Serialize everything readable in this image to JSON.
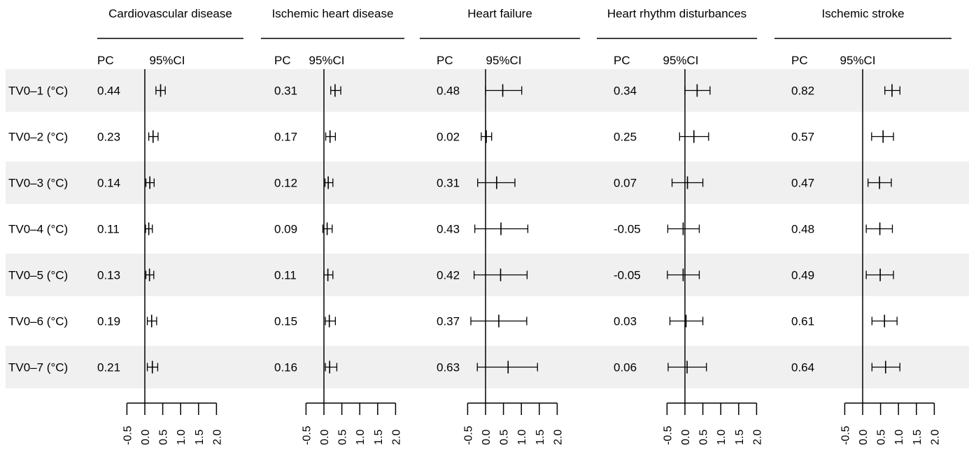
{
  "column_headers": {
    "pc": "PC",
    "ci": "95%CI"
  },
  "row_labels": [
    "TV0–1 (°C)",
    "TV0–2 (°C)",
    "TV0–3 (°C)",
    "TV0–4 (°C)",
    "TV0–5 (°C)",
    "TV0–6 (°C)",
    "TV0–7 (°C)"
  ],
  "colors": {
    "row_band": "#f0f0f0",
    "ink": "#000000"
  },
  "chart_data": [
    {
      "type": "forest",
      "title": "Cardiovascular disease",
      "pc_labels": [
        "0.44",
        "0.23",
        "0.14",
        "0.11",
        "0.13",
        "0.19",
        "0.21"
      ],
      "values": [
        0.44,
        0.23,
        0.14,
        0.11,
        0.13,
        0.19,
        0.21
      ],
      "ci_lower": [
        0.31,
        0.11,
        0.03,
        0.02,
        0.03,
        0.07,
        0.07
      ],
      "ci_upper": [
        0.57,
        0.37,
        0.26,
        0.21,
        0.25,
        0.33,
        0.36
      ],
      "xlim": [
        -0.5,
        2.0
      ],
      "xticks": [
        "-0.5",
        "0.0",
        "0.5",
        "1.0",
        "1.5",
        "2.0"
      ]
    },
    {
      "type": "forest",
      "title": "Ischemic heart disease",
      "pc_labels": [
        "0.31",
        "0.17",
        "0.12",
        "0.09",
        "0.11",
        "0.15",
        "0.16"
      ],
      "values": [
        0.31,
        0.17,
        0.12,
        0.09,
        0.11,
        0.15,
        0.16
      ],
      "ci_lower": [
        0.19,
        0.05,
        0.03,
        -0.03,
        0.0,
        0.04,
        0.04
      ],
      "ci_upper": [
        0.47,
        0.32,
        0.25,
        0.23,
        0.25,
        0.32,
        0.36
      ],
      "xlim": [
        -0.5,
        2.0
      ],
      "xticks": [
        "-0.5",
        "0.0",
        "0.5",
        "1.0",
        "1.5",
        "2.0"
      ]
    },
    {
      "type": "forest",
      "title": "Heart failure",
      "pc_labels": [
        "0.48",
        "0.02",
        "0.31",
        "0.43",
        "0.42",
        "0.37",
        "0.63"
      ],
      "values": [
        0.48,
        0.02,
        0.31,
        0.43,
        0.42,
        0.37,
        0.63
      ],
      "ci_lower": [
        0.0,
        -0.12,
        -0.22,
        -0.3,
        -0.32,
        -0.41,
        -0.23
      ],
      "ci_upper": [
        1.01,
        0.17,
        0.82,
        1.18,
        1.16,
        1.15,
        1.45
      ],
      "xlim": [
        -0.5,
        2.0
      ],
      "xticks": [
        "-0.5",
        "0.0",
        "0.5",
        "1.0",
        "1.5",
        "2.0"
      ]
    },
    {
      "type": "forest",
      "title": "Heart rhythm disturbances",
      "pc_labels": [
        "0.34",
        "0.25",
        "0.07",
        "-0.05",
        "-0.05",
        "0.03",
        "0.06"
      ],
      "values": [
        0.34,
        0.25,
        0.07,
        -0.05,
        -0.05,
        0.03,
        0.06
      ],
      "ci_lower": [
        0.0,
        -0.15,
        -0.36,
        -0.48,
        -0.49,
        -0.42,
        -0.47
      ],
      "ci_upper": [
        0.7,
        0.66,
        0.5,
        0.4,
        0.4,
        0.5,
        0.6
      ],
      "xlim": [
        -0.5,
        2.0
      ],
      "xticks": [
        "-0.5",
        "0.0",
        "0.5",
        "1.0",
        "1.5",
        "2.0"
      ]
    },
    {
      "type": "forest",
      "title": "Ischemic stroke",
      "pc_labels": [
        "0.82",
        "0.57",
        "0.47",
        "0.48",
        "0.49",
        "0.61",
        "0.64"
      ],
      "values": [
        0.82,
        0.57,
        0.47,
        0.48,
        0.49,
        0.61,
        0.64
      ],
      "ci_lower": [
        0.62,
        0.25,
        0.15,
        0.1,
        0.1,
        0.26,
        0.26
      ],
      "ci_upper": [
        1.04,
        0.86,
        0.8,
        0.83,
        0.86,
        0.96,
        1.04
      ],
      "xlim": [
        -0.5,
        2.0
      ],
      "xticks": [
        "-0.5",
        "0.0",
        "0.5",
        "1.0",
        "1.5",
        "2.0"
      ]
    }
  ]
}
